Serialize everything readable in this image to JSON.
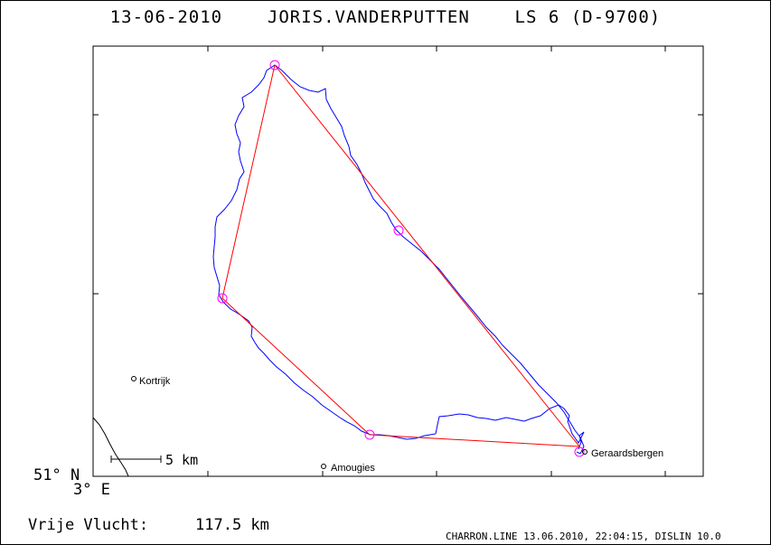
{
  "title": "13-06-2010    JORIS.VANDERPUTTEN    LS 6 (D-9700)",
  "coord_lat": "51° N",
  "coord_lon": "3° E",
  "scale_label": "5 km",
  "distance_label": "Vrije Vlucht:",
  "distance_value": "117.5 km",
  "footer": "CHARRON.LINE 13.06.2010, 22:04:15, DISLIN 10.0",
  "towns": [
    {
      "name": "Kortrijk"
    },
    {
      "name": "Amougies"
    },
    {
      "name": "Geraardsbergen"
    }
  ],
  "colors": {
    "track": "#0000ff",
    "task_line": "#ff0000",
    "turnpoint": "#ff00ff",
    "frame": "#000000"
  },
  "icons": {
    "town_marker": "circle-icon",
    "turnpoint_marker": "circle-icon"
  }
}
